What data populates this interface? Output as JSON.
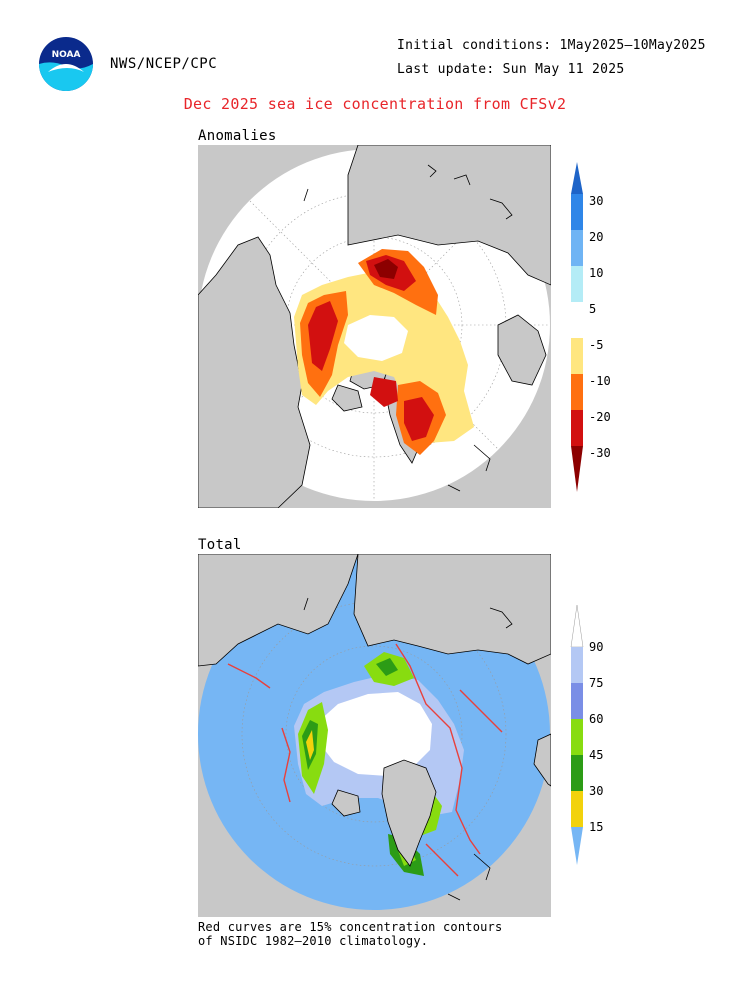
{
  "header": {
    "agency": "NWS/NCEP/CPC",
    "initial_conditions": "Initial conditions: 1May2025–10May2025",
    "last_update": "Last update: Sun May 11 2025",
    "logo_text": "NOAA"
  },
  "title": "Dec 2025 sea ice concentration from CFSv2",
  "panels": {
    "anomalies": {
      "label": "Anomalies"
    },
    "total": {
      "label": "Total"
    }
  },
  "legend_anomaly": {
    "levels": [
      "30",
      "20",
      "10",
      "5",
      "-5",
      "-10",
      "-20",
      "-30"
    ],
    "colors": [
      "#1e64c8",
      "#2f86e8",
      "#6fb4f4",
      "#b4ecf6",
      "#ffffff",
      "#ffe680",
      "#ff7010",
      "#d21010",
      "#8c0000"
    ]
  },
  "legend_total": {
    "levels": [
      "90",
      "75",
      "60",
      "45",
      "30",
      "15"
    ],
    "colors": [
      "#ffffff",
      "#b4c8f4",
      "#7a8ee6",
      "#88dc10",
      "#2c9c16",
      "#f2d20c",
      "#76b6f4"
    ]
  },
  "colors": {
    "land": "#c8c8c8",
    "ocean": "#ffffff",
    "total_ocean": "#76b6f4",
    "climatology_contour": "#e8403c",
    "title": "#e8252a"
  },
  "footnote": {
    "line1": "Red curves are 15% concentration contours",
    "line2": "of NSIDC 1982–2010 climatology."
  }
}
